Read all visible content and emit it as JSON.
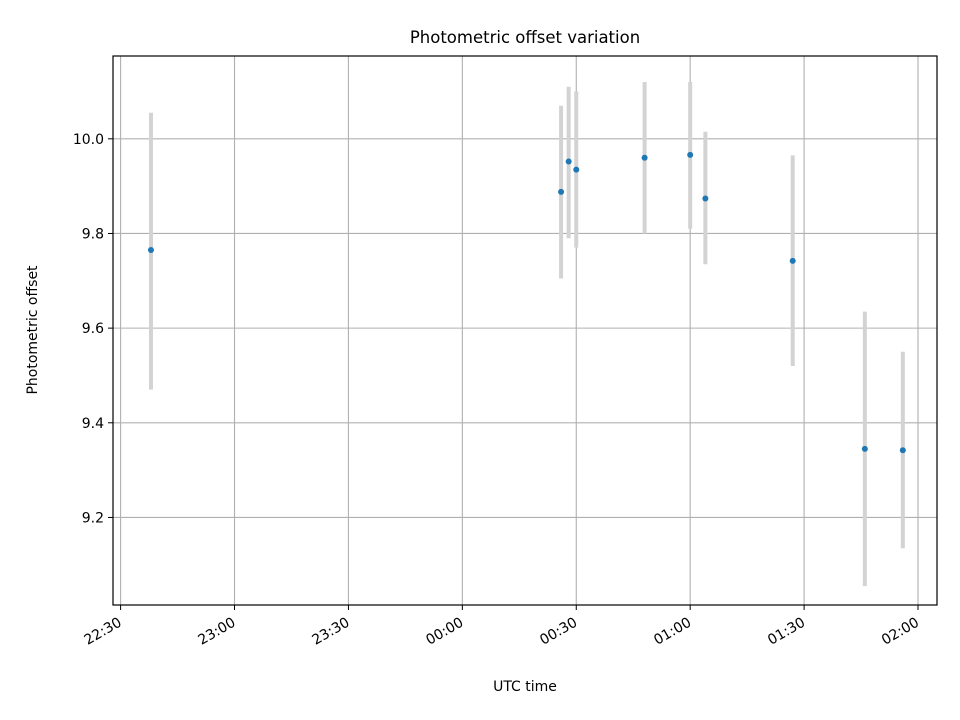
{
  "chart_data": {
    "type": "scatter",
    "title": "Photometric offset variation",
    "xlabel": "UTC time",
    "ylabel": "Photometric offset",
    "x_is_time": true,
    "xlim": [
      "22:28",
      "02:05"
    ],
    "ylim": [
      9.015,
      10.175
    ],
    "grid": true,
    "x_tick_labels": [
      "22:30",
      "23:00",
      "23:30",
      "00:00",
      "00:30",
      "01:00",
      "01:30",
      "02:00"
    ],
    "y_tick_labels": [
      "9.2",
      "9.4",
      "9.6",
      "9.8",
      "10.0"
    ],
    "y_ticks": [
      9.2,
      9.4,
      9.6,
      9.8,
      10.0
    ],
    "colors": {
      "point": "#1f77b4",
      "errorbar": "#d3d3d3",
      "grid": "#b0b0b0",
      "axes": "#000000"
    },
    "points": [
      {
        "t": "22:38",
        "y": 9.765,
        "err_low": 9.47,
        "err_high": 10.055
      },
      {
        "t": "00:26",
        "y": 9.888,
        "err_low": 9.705,
        "err_high": 10.07
      },
      {
        "t": "00:28",
        "y": 9.952,
        "err_low": 9.79,
        "err_high": 10.11
      },
      {
        "t": "00:30",
        "y": 9.935,
        "err_low": 9.77,
        "err_high": 10.1
      },
      {
        "t": "00:48",
        "y": 9.96,
        "err_low": 9.8,
        "err_high": 10.12
      },
      {
        "t": "01:00",
        "y": 9.966,
        "err_low": 9.81,
        "err_high": 10.12
      },
      {
        "t": "01:04",
        "y": 9.874,
        "err_low": 9.735,
        "err_high": 10.015
      },
      {
        "t": "01:27",
        "y": 9.742,
        "err_low": 9.52,
        "err_high": 9.965
      },
      {
        "t": "01:46",
        "y": 9.345,
        "err_low": 9.055,
        "err_high": 9.635
      },
      {
        "t": "01:56",
        "y": 9.342,
        "err_low": 9.135,
        "err_high": 9.55
      }
    ]
  }
}
